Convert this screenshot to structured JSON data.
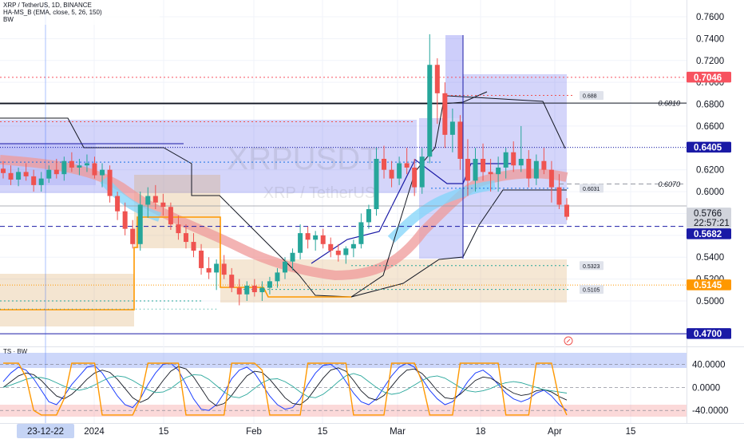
{
  "header": {
    "symbol_line": "XRP / TetherUS, 1D, BINANCE",
    "indicator_1": "HA-MS_B (EMA, close, 5, 26, 150)",
    "indicator_2": "BW"
  },
  "watermark": {
    "ticker": "XRPUSDT",
    "name": "XRP / TetherUS"
  },
  "price_axis": {
    "ticks": [
      "0.7600",
      "0.7400",
      "0.7200",
      "0.7000",
      "0.6800",
      "0.6600",
      "0.6400",
      "0.6200",
      "0.6000",
      "0.5800",
      "0.5600",
      "0.5400",
      "0.5200",
      "0.5000"
    ],
    "tick_values": [
      0.76,
      0.74,
      0.72,
      0.7,
      0.68,
      0.66,
      0.64,
      0.62,
      0.6,
      0.58,
      0.56,
      0.54,
      0.52,
      0.5
    ],
    "badges": [
      {
        "text": "0.7046",
        "value": 0.7046,
        "bg": "#f7525f",
        "fg": "#ffffff"
      },
      {
        "text": "0.6405",
        "value": 0.6405,
        "bg": "#1a1aa6",
        "fg": "#ffffff"
      },
      {
        "text": "0.5766",
        "value": 0.5766,
        "bg": "#d1d4dc",
        "fg": "#131722"
      },
      {
        "text": "22:57:21",
        "value": 0.5691,
        "bg": "#d1d4dc",
        "fg": "#131722"
      },
      {
        "text": "0.5682",
        "value": 0.5682,
        "bg": "#1a1aa6",
        "fg": "#ffffff"
      },
      {
        "text": "0.5145",
        "value": 0.5145,
        "bg": "#ff9800",
        "fg": "#ffffff"
      },
      {
        "text": "0.4700",
        "value": 0.47,
        "bg": "#1a1aa6",
        "fg": "#ffffff"
      }
    ]
  },
  "level_tags": [
    {
      "text": "0.688",
      "value": 0.688
    },
    {
      "text": "0.6031",
      "value": 0.6031
    },
    {
      "text": "0.5323",
      "value": 0.5323
    },
    {
      "text": "0.5105",
      "value": 0.5105
    }
  ],
  "level_labels": [
    {
      "text": "0.6810",
      "value": 0.681
    },
    {
      "text": "0.6070",
      "value": 0.607
    }
  ],
  "time_axis": {
    "labels": [
      "23-12-22",
      "2024",
      "15",
      "Feb",
      "15",
      "Mar",
      "18",
      "Apr",
      "15"
    ],
    "highlight": "23-12-22"
  },
  "oscillator": {
    "title": "TS · BW",
    "ticks": [
      "40.0000",
      "0.0000",
      "-40.0000"
    ],
    "tick_values": [
      40,
      0,
      -40
    ]
  },
  "colors": {
    "bull": "#26a69a",
    "bear": "#ef5350",
    "navy": "#1a1aa6",
    "orange": "#ff9800",
    "blue_zone": "#6f74f0",
    "tan_zone": "#d8a25a"
  },
  "chart_data": {
    "type": "candlestick",
    "symbol": "XRP / TetherUS",
    "interval": "1D",
    "exchange": "BINANCE",
    "ylim": [
      0.47,
      0.76
    ],
    "ohlc": [
      [
        0.621,
        0.628,
        0.612,
        0.617
      ],
      [
        0.617,
        0.624,
        0.606,
        0.611
      ],
      [
        0.611,
        0.622,
        0.605,
        0.618
      ],
      [
        0.618,
        0.626,
        0.61,
        0.614
      ],
      [
        0.614,
        0.62,
        0.6,
        0.606
      ],
      [
        0.606,
        0.618,
        0.6,
        0.612
      ],
      [
        0.612,
        0.624,
        0.608,
        0.62
      ],
      [
        0.62,
        0.63,
        0.612,
        0.616
      ],
      [
        0.616,
        0.632,
        0.61,
        0.628
      ],
      [
        0.628,
        0.636,
        0.618,
        0.622
      ],
      [
        0.622,
        0.63,
        0.615,
        0.624
      ],
      [
        0.624,
        0.634,
        0.618,
        0.626
      ],
      [
        0.626,
        0.632,
        0.612,
        0.615
      ],
      [
        0.615,
        0.626,
        0.604,
        0.62
      ],
      [
        0.62,
        0.624,
        0.59,
        0.596
      ],
      [
        0.596,
        0.6,
        0.574,
        0.582
      ],
      [
        0.582,
        0.59,
        0.56,
        0.566
      ],
      [
        0.566,
        0.574,
        0.548,
        0.552
      ],
      [
        0.552,
        0.6,
        0.546,
        0.588
      ],
      [
        0.588,
        0.604,
        0.576,
        0.596
      ],
      [
        0.596,
        0.606,
        0.584,
        0.59
      ],
      [
        0.59,
        0.598,
        0.578,
        0.586
      ],
      [
        0.586,
        0.59,
        0.565,
        0.57
      ],
      [
        0.57,
        0.578,
        0.556,
        0.562
      ],
      [
        0.562,
        0.57,
        0.548,
        0.554
      ],
      [
        0.554,
        0.562,
        0.54,
        0.546
      ],
      [
        0.546,
        0.552,
        0.524,
        0.53
      ],
      [
        0.53,
        0.54,
        0.52,
        0.526
      ],
      [
        0.526,
        0.538,
        0.51,
        0.534
      ],
      [
        0.534,
        0.542,
        0.52,
        0.524
      ],
      [
        0.524,
        0.53,
        0.508,
        0.512
      ],
      [
        0.512,
        0.52,
        0.496,
        0.506
      ],
      [
        0.506,
        0.518,
        0.5,
        0.514
      ],
      [
        0.514,
        0.52,
        0.504,
        0.508
      ],
      [
        0.508,
        0.518,
        0.5,
        0.512
      ],
      [
        0.512,
        0.522,
        0.506,
        0.518
      ],
      [
        0.518,
        0.53,
        0.512,
        0.526
      ],
      [
        0.526,
        0.54,
        0.52,
        0.536
      ],
      [
        0.536,
        0.548,
        0.528,
        0.544
      ],
      [
        0.544,
        0.57,
        0.538,
        0.562
      ],
      [
        0.562,
        0.568,
        0.548,
        0.556
      ],
      [
        0.556,
        0.564,
        0.546,
        0.56
      ],
      [
        0.56,
        0.566,
        0.548,
        0.552
      ],
      [
        0.552,
        0.558,
        0.54,
        0.546
      ],
      [
        0.546,
        0.552,
        0.536,
        0.542
      ],
      [
        0.542,
        0.55,
        0.534,
        0.548
      ],
      [
        0.548,
        0.556,
        0.54,
        0.552
      ],
      [
        0.552,
        0.58,
        0.548,
        0.572
      ],
      [
        0.572,
        0.588,
        0.566,
        0.584
      ],
      [
        0.584,
        0.64,
        0.578,
        0.63
      ],
      [
        0.63,
        0.642,
        0.612,
        0.62
      ],
      [
        0.62,
        0.628,
        0.604,
        0.612
      ],
      [
        0.612,
        0.632,
        0.606,
        0.626
      ],
      [
        0.626,
        0.64,
        0.616,
        0.622
      ],
      [
        0.622,
        0.63,
        0.596,
        0.604
      ],
      [
        0.604,
        0.64,
        0.598,
        0.632
      ],
      [
        0.632,
        0.744,
        0.626,
        0.716
      ],
      [
        0.716,
        0.722,
        0.662,
        0.69
      ],
      [
        0.69,
        0.7,
        0.64,
        0.652
      ],
      [
        0.652,
        0.676,
        0.636,
        0.664
      ],
      [
        0.664,
        0.67,
        0.62,
        0.63
      ],
      [
        0.63,
        0.648,
        0.596,
        0.61
      ],
      [
        0.61,
        0.64,
        0.6,
        0.63
      ],
      [
        0.63,
        0.644,
        0.61,
        0.618
      ],
      [
        0.618,
        0.63,
        0.6,
        0.616
      ],
      [
        0.616,
        0.632,
        0.6,
        0.622
      ],
      [
        0.622,
        0.64,
        0.612,
        0.636
      ],
      [
        0.636,
        0.646,
        0.618,
        0.624
      ],
      [
        0.624,
        0.66,
        0.618,
        0.63
      ],
      [
        0.63,
        0.638,
        0.604,
        0.612
      ],
      [
        0.612,
        0.634,
        0.606,
        0.628
      ],
      [
        0.628,
        0.64,
        0.616,
        0.62
      ],
      [
        0.62,
        0.628,
        0.59,
        0.604
      ],
      [
        0.604,
        0.616,
        0.584,
        0.588
      ],
      [
        0.588,
        0.594,
        0.574,
        0.577
      ]
    ],
    "levels": [
      0.7046,
      0.6881,
      0.681,
      0.6405,
      0.607,
      0.6031,
      0.5766,
      0.5682,
      0.5323,
      0.5145,
      0.5105,
      0.47
    ],
    "oscillator": {
      "name": "TS · BW",
      "ylim": [
        -55,
        60
      ],
      "series": [
        [
          10,
          25,
          35,
          30,
          15,
          -5,
          -25,
          -30,
          -15,
          5,
          20,
          35,
          38,
          25,
          5,
          -15,
          -30,
          -35,
          -20,
          5,
          25,
          40,
          42,
          30,
          5,
          -20,
          -38,
          -40,
          -30,
          -10,
          15,
          30,
          35,
          25,
          5,
          -15,
          -30,
          -38,
          -35,
          -20,
          5,
          25,
          38,
          40,
          30,
          10,
          -10,
          -25,
          -30,
          -20,
          0,
          20,
          35,
          42,
          35,
          15,
          -5,
          -20,
          -30,
          -25,
          -10,
          10,
          25,
          30,
          20,
          5,
          -10,
          -20,
          -25,
          -20,
          -10,
          -5,
          -15,
          -30,
          -40
        ],
        [
          0,
          10,
          20,
          25,
          22,
          12,
          -2,
          -15,
          -20,
          -12,
          0,
          14,
          25,
          30,
          26,
          14,
          -2,
          -18,
          -26,
          -20,
          -6,
          12,
          28,
          36,
          32,
          18,
          -2,
          -22,
          -32,
          -28,
          -14,
          4,
          20,
          28,
          26,
          14,
          -2,
          -18,
          -28,
          -30,
          -20,
          -2,
          16,
          30,
          34,
          28,
          12,
          -6,
          -18,
          -22,
          -14,
          2,
          18,
          30,
          32,
          24,
          10,
          -6,
          -18,
          -20,
          -12,
          0,
          12,
          18,
          16,
          8,
          -2,
          -10,
          -14,
          -12,
          -6,
          -4,
          -8,
          -16,
          -22
        ],
        [
          0,
          4,
          9,
          14,
          17,
          17,
          14,
          8,
          2,
          -3,
          -5,
          -2,
          4,
          11,
          17,
          20,
          18,
          12,
          4,
          -4,
          -9,
          -8,
          -2,
          8,
          17,
          22,
          21,
          14,
          3,
          -8,
          -16,
          -18,
          -12,
          -2,
          8,
          14,
          15,
          10,
          2,
          -8,
          -16,
          -18,
          -12,
          -2,
          10,
          20,
          24,
          20,
          10,
          0,
          -8,
          -12,
          -10,
          -4,
          4,
          12,
          18,
          20,
          16,
          8,
          0,
          -6,
          -8,
          -6,
          -2,
          4,
          8,
          10,
          8,
          4,
          0,
          -4,
          -6,
          -8,
          -10
        ],
        [
          42,
          42,
          42,
          18,
          -40,
          -48,
          -48,
          -48,
          -20,
          42,
          42,
          42,
          42,
          -48,
          -48,
          -48,
          -48,
          -48,
          -20,
          42,
          42,
          42,
          42,
          42,
          -48,
          -48,
          -48,
          -48,
          -48,
          -48,
          42,
          42,
          42,
          42,
          30,
          -48,
          -48,
          -48,
          -48,
          -48,
          42,
          42,
          42,
          42,
          42,
          42,
          -48,
          -48,
          -48,
          -48,
          -48,
          42,
          42,
          42,
          42,
          10,
          -48,
          -48,
          -48,
          -48,
          42,
          42,
          42,
          42,
          42,
          42,
          -48,
          -48,
          -48,
          -48,
          42,
          42,
          42,
          -20,
          -48
        ]
      ]
    }
  }
}
